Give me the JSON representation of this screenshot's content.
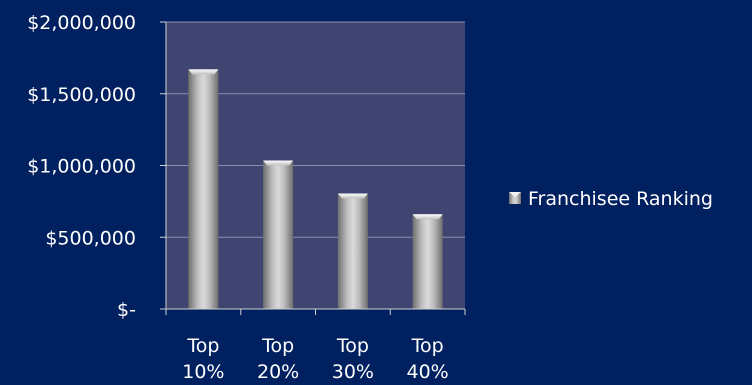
{
  "chart_data": {
    "type": "bar",
    "categories": [
      [
        "Top",
        "10%"
      ],
      [
        "Top",
        "20%"
      ],
      [
        "Top",
        "30%"
      ],
      [
        "Top",
        "40%"
      ]
    ],
    "series": [
      {
        "name": "Franchisee Ranking",
        "values": [
          1670000,
          1035000,
          805000,
          660000
        ]
      }
    ],
    "yticks": [
      {
        "value": 2000000,
        "label": "$2,000,000"
      },
      {
        "value": 1500000,
        "label": "$1,500,000"
      },
      {
        "value": 1000000,
        "label": "$1,000,000"
      },
      {
        "value": 500000,
        "label": "$500,000"
      },
      {
        "value": 0,
        "label": "$-"
      }
    ],
    "ylim": [
      0,
      2000000
    ],
    "grid": true,
    "legend_position": "right",
    "colors": {
      "page_background": "#002060",
      "plot_background": "#3f4470",
      "gridline": "#8a8fb0",
      "bar_light": "#e6e6e6",
      "bar_dark": "#7a7a7a"
    }
  }
}
